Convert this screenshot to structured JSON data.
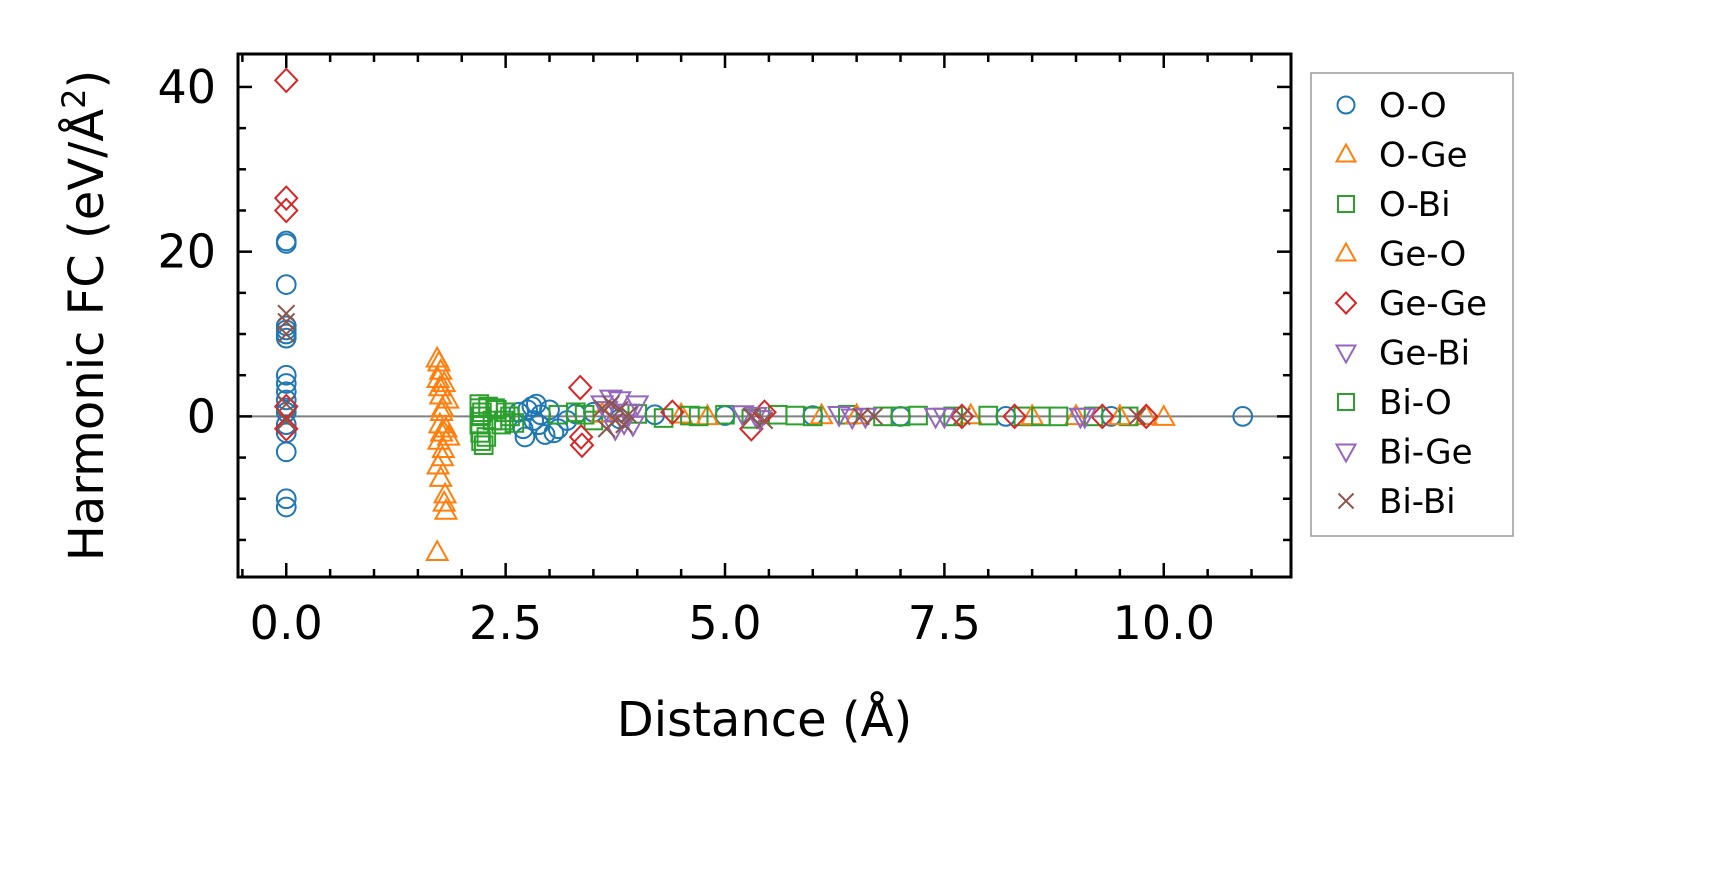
{
  "chart_data": {
    "type": "scatter",
    "title": "",
    "xlabel": "Distance (Å)",
    "ylabel": "Harmonic FC (eV/Å²)",
    "ylabel_parts": {
      "main": "Harmonic FC (eV/Å",
      "sup": "2",
      "end": ")"
    },
    "xlim": [
      -0.55,
      11.45
    ],
    "ylim": [
      -19.5,
      44
    ],
    "xticks": [
      0.0,
      2.5,
      5.0,
      7.5,
      10.0
    ],
    "xtick_labels": [
      "0.0",
      "2.5",
      "5.0",
      "7.5",
      "10.0"
    ],
    "yticks": [
      0,
      20,
      40
    ],
    "ytick_labels": [
      "0",
      "20",
      "40"
    ],
    "legend_position": "right-outside",
    "reference_line_y": 0,
    "series": [
      {
        "name": "O-O",
        "marker": "circle",
        "color": "#1f77b4",
        "points": [
          [
            0,
            21.3
          ],
          [
            0,
            21.0
          ],
          [
            0,
            16.0
          ],
          [
            0,
            11.0
          ],
          [
            0,
            10.5
          ],
          [
            0,
            10.0
          ],
          [
            0,
            9.5
          ],
          [
            0,
            5.0
          ],
          [
            0,
            4.0
          ],
          [
            0,
            3.0
          ],
          [
            0,
            2.0
          ],
          [
            0,
            1.0
          ],
          [
            0,
            0.5
          ],
          [
            0,
            -1.0
          ],
          [
            0,
            -2.0
          ],
          [
            0,
            -4.3
          ],
          [
            0,
            -10.0
          ],
          [
            0,
            -11.0
          ],
          [
            2.65,
            0.5
          ],
          [
            2.7,
            -1.5
          ],
          [
            2.72,
            -2.5
          ],
          [
            2.75,
            0.8
          ],
          [
            2.8,
            1.2
          ],
          [
            2.82,
            -0.5
          ],
          [
            2.85,
            1.5
          ],
          [
            2.88,
            -1.0
          ],
          [
            2.9,
            0.2
          ],
          [
            2.95,
            -2.2
          ],
          [
            3.0,
            0.8
          ],
          [
            3.05,
            -2.0
          ],
          [
            3.1,
            -1.5
          ],
          [
            3.2,
            -0.5
          ],
          [
            3.3,
            0.3
          ],
          [
            3.5,
            0.5
          ],
          [
            3.8,
            -0.3
          ],
          [
            4.2,
            0.2
          ],
          [
            5.0,
            0.1
          ],
          [
            6.0,
            0.1
          ],
          [
            7.0,
            0.0
          ],
          [
            8.2,
            0.0
          ],
          [
            9.4,
            0.0
          ],
          [
            10.9,
            0.0
          ]
        ]
      },
      {
        "name": "O-Ge",
        "marker": "triangle-up",
        "color": "#ff7f0e",
        "points": [
          [
            1.72,
            7.0
          ],
          [
            1.74,
            6.5
          ],
          [
            1.73,
            4.5
          ],
          [
            1.75,
            3.5
          ],
          [
            1.76,
            2.5
          ],
          [
            1.8,
            4.0
          ],
          [
            1.78,
            1.0
          ],
          [
            1.75,
            -1.0
          ],
          [
            1.77,
            -2.0
          ],
          [
            1.74,
            -3.0
          ],
          [
            1.79,
            -4.0
          ],
          [
            1.73,
            -6.0
          ],
          [
            1.76,
            -7.5
          ],
          [
            1.8,
            -10.5
          ],
          [
            1.82,
            -11.5
          ],
          [
            1.72,
            -16.5
          ],
          [
            1.85,
            -2.5
          ],
          [
            1.84,
            2.0
          ],
          [
            1.82,
            -1.5
          ],
          [
            4.5,
            0.2
          ],
          [
            6.1,
            0.1
          ],
          [
            7.8,
            0.1
          ],
          [
            9.0,
            0.0
          ],
          [
            9.8,
            0.0
          ],
          [
            10.0,
            -0.1
          ]
        ]
      },
      {
        "name": "O-Bi",
        "marker": "square",
        "color": "#2ca02c",
        "points": [
          [
            2.2,
            1.5
          ],
          [
            2.2,
            1.0
          ],
          [
            2.22,
            0.0
          ],
          [
            2.2,
            -1.0
          ],
          [
            2.21,
            -2.0
          ],
          [
            2.22,
            -3.0
          ],
          [
            2.25,
            -3.5
          ],
          [
            2.3,
            1.2
          ],
          [
            2.35,
            -0.5
          ],
          [
            2.4,
            0.8
          ],
          [
            2.45,
            -1.0
          ],
          [
            2.5,
            0.5
          ],
          [
            2.55,
            0.0
          ],
          [
            2.6,
            -0.8
          ],
          [
            3.1,
            0.2
          ],
          [
            3.3,
            0.5
          ],
          [
            3.5,
            -0.5
          ],
          [
            4.0,
            0.3
          ],
          [
            4.3,
            -0.2
          ],
          [
            4.6,
            0.1
          ],
          [
            5.0,
            0.2
          ],
          [
            5.3,
            -0.3
          ],
          [
            5.6,
            0.2
          ],
          [
            6.0,
            0.0
          ],
          [
            6.4,
            0.2
          ],
          [
            6.8,
            0.0
          ],
          [
            7.2,
            0.1
          ],
          [
            7.6,
            0.0
          ],
          [
            8.0,
            0.1
          ],
          [
            8.4,
            0.0
          ],
          [
            8.8,
            0.0
          ],
          [
            9.2,
            0.0
          ],
          [
            9.6,
            0.0
          ]
        ]
      },
      {
        "name": "Ge-O",
        "marker": "triangle-up",
        "color": "#ff7f0e",
        "points": [
          [
            1.76,
            5.5
          ],
          [
            1.78,
            -5.0
          ],
          [
            1.81,
            -9.5
          ],
          [
            1.77,
            0.5
          ],
          [
            3.6,
            0.3
          ],
          [
            4.8,
            0.0
          ],
          [
            6.5,
            0.1
          ],
          [
            8.5,
            0.0
          ],
          [
            9.5,
            0.0
          ]
        ]
      },
      {
        "name": "Ge-Ge",
        "marker": "diamond",
        "color": "#d62728",
        "points": [
          [
            0,
            40.8
          ],
          [
            0,
            26.5
          ],
          [
            0,
            25.0
          ],
          [
            0,
            1.2
          ],
          [
            0,
            -1.5
          ],
          [
            3.35,
            3.5
          ],
          [
            3.37,
            -3.5
          ],
          [
            3.36,
            -2.5
          ],
          [
            4.4,
            0.5
          ],
          [
            5.3,
            -1.5
          ],
          [
            5.45,
            0.5
          ],
          [
            7.7,
            0.0
          ],
          [
            8.3,
            0.0
          ],
          [
            9.3,
            0.0
          ],
          [
            9.8,
            0.0
          ]
        ]
      },
      {
        "name": "Ge-Bi",
        "marker": "triangle-down",
        "color": "#9467bd",
        "points": [
          [
            3.6,
            1.5
          ],
          [
            3.7,
            2.2
          ],
          [
            3.8,
            2.0
          ],
          [
            3.9,
            0.5
          ],
          [
            3.95,
            -1.0
          ],
          [
            4.0,
            1.5
          ],
          [
            3.75,
            -1.5
          ],
          [
            5.2,
            0.3
          ],
          [
            5.4,
            -0.3
          ],
          [
            6.3,
            0.2
          ],
          [
            6.6,
            0.0
          ],
          [
            7.4,
            0.0
          ],
          [
            9.05,
            0.0
          ]
        ]
      },
      {
        "name": "Bi-O",
        "marker": "square",
        "color": "#2ca02c",
        "points": [
          [
            2.23,
            0.5
          ],
          [
            2.28,
            -2.5
          ],
          [
            2.38,
            1.0
          ],
          [
            2.48,
            -0.5
          ],
          [
            3.4,
            0.2
          ],
          [
            4.7,
            0.0
          ],
          [
            5.8,
            0.1
          ],
          [
            7.0,
            0.0
          ],
          [
            8.6,
            0.0
          ]
        ]
      },
      {
        "name": "Bi-Ge",
        "marker": "triangle-down",
        "color": "#9467bd",
        "points": [
          [
            3.65,
            0.8
          ],
          [
            3.85,
            -0.8
          ],
          [
            5.35,
            0.1
          ],
          [
            6.45,
            -0.1
          ],
          [
            7.5,
            0.0
          ],
          [
            9.1,
            0.0
          ]
        ]
      },
      {
        "name": "Bi-Bi",
        "marker": "x",
        "color": "#8c564b",
        "points": [
          [
            0,
            12.5
          ],
          [
            0,
            11.5
          ],
          [
            0,
            10.0
          ],
          [
            0,
            1.5
          ],
          [
            0,
            -0.5
          ],
          [
            3.6,
            1.0
          ],
          [
            3.65,
            -1.5
          ],
          [
            3.7,
            1.5
          ],
          [
            3.75,
            -0.5
          ],
          [
            3.8,
            0.8
          ],
          [
            3.85,
            -1.0
          ],
          [
            3.9,
            0.2
          ],
          [
            5.3,
            0.0
          ],
          [
            5.45,
            -0.5
          ],
          [
            6.55,
            0.0
          ],
          [
            6.7,
            0.0
          ],
          [
            7.7,
            0.0
          ],
          [
            9.7,
            0.0
          ]
        ]
      }
    ]
  }
}
